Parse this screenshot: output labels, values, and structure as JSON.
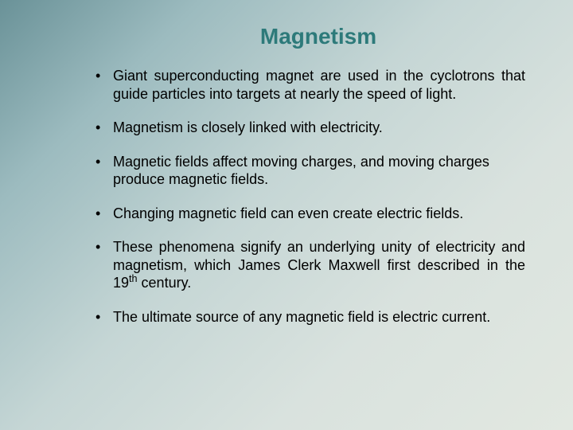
{
  "slide": {
    "title": "Magnetism",
    "title_color": "#2d7a7a",
    "title_fontsize": 28,
    "body_fontsize": 18,
    "body_color": "#000000",
    "background_gradient": [
      "#6a9298",
      "#9cbbbf",
      "#c5d6d5",
      "#d9e2de",
      "#e2e8e1"
    ],
    "bullets": [
      {
        "text": "Giant superconducting magnet are used in the cyclotrons that guide particles into targets at nearly the speed of light.",
        "justify": true
      },
      {
        "text": "Magnetism is closely linked with electricity.",
        "justify": false
      },
      {
        "text": "Magnetic fields affect moving charges, and moving charges produce magnetic fields.",
        "justify": false
      },
      {
        "text": "Changing magnetic field can even create electric fields.",
        "justify": true
      },
      {
        "text_pre": "These phenomena signify an underlying unity of electricity and magnetism, which James Clerk Maxwell first described in the 19",
        "sup": "th",
        "text_post": " century.",
        "justify": true
      },
      {
        "text": "The ultimate source of any magnetic field is electric current.",
        "justify": false
      }
    ]
  }
}
